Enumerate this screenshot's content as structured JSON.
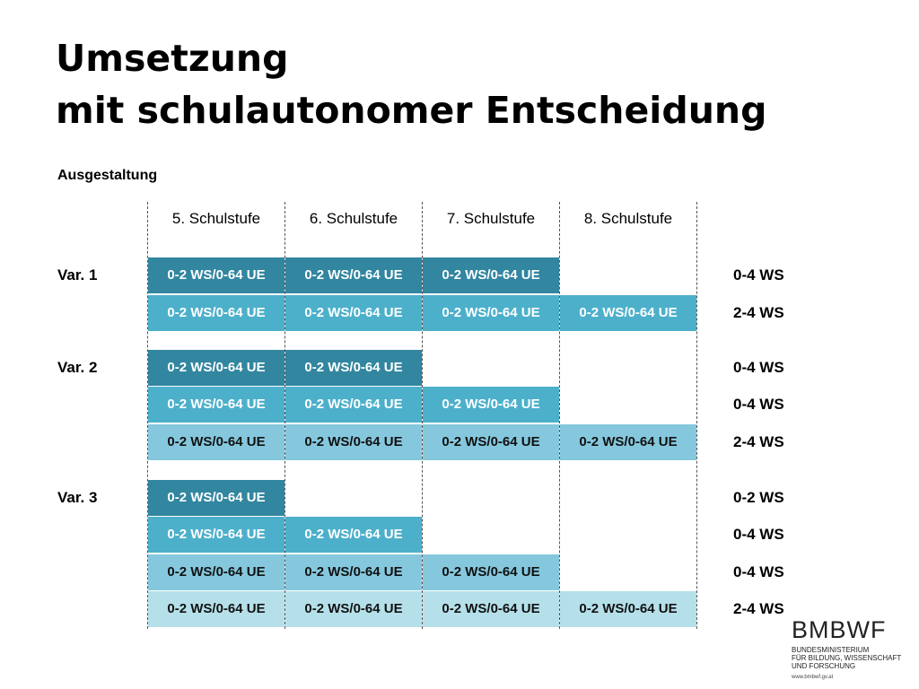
{
  "title": {
    "line1": "Umsetzung",
    "line2": "mit schulautonomer Entscheidung"
  },
  "section_heading": "Ausgestaltung",
  "columns": [
    "5. Schulstufe",
    "6. Schulstufe",
    "7. Schulstufe",
    "8. Schulstufe"
  ],
  "cell_text": "0-2 WS/0-64 UE",
  "variants": [
    {
      "label": "Var. 1",
      "rows": [
        {
          "cells": [
            true,
            true,
            true,
            false
          ],
          "shade": "dark",
          "total": "0-4 WS"
        },
        {
          "cells": [
            true,
            true,
            true,
            true
          ],
          "shade": "mid",
          "total": "2-4 WS"
        }
      ]
    },
    {
      "label": "Var. 2",
      "rows": [
        {
          "cells": [
            true,
            true,
            false,
            false
          ],
          "shade": "dark",
          "total": "0-4 WS"
        },
        {
          "cells": [
            true,
            true,
            true,
            false
          ],
          "shade": "mid",
          "total": "0-4 WS"
        },
        {
          "cells": [
            true,
            true,
            true,
            true
          ],
          "shade": "light",
          "total": "2-4 WS"
        }
      ]
    },
    {
      "label": "Var. 3",
      "rows": [
        {
          "cells": [
            true,
            false,
            false,
            false
          ],
          "shade": "dark",
          "total": "0-2 WS"
        },
        {
          "cells": [
            true,
            true,
            false,
            false
          ],
          "shade": "mid",
          "total": "0-4 WS"
        },
        {
          "cells": [
            true,
            true,
            true,
            false
          ],
          "shade": "light",
          "total": "0-4 WS"
        },
        {
          "cells": [
            true,
            true,
            true,
            true
          ],
          "shade": "pale",
          "total": "2-4 WS"
        }
      ]
    }
  ],
  "colors": {
    "dark": "#3286a0",
    "mid": "#4db0cb",
    "light": "#85c8de",
    "pale": "#b5e0ea"
  },
  "logo": {
    "name": "BMBWF",
    "subtitle_lines": [
      "BUNDESMINISTERIUM",
      "FÜR BILDUNG, WISSENSCHAFT",
      "UND FORSCHUNG"
    ],
    "url": "www.bmbwf.gv.at"
  }
}
